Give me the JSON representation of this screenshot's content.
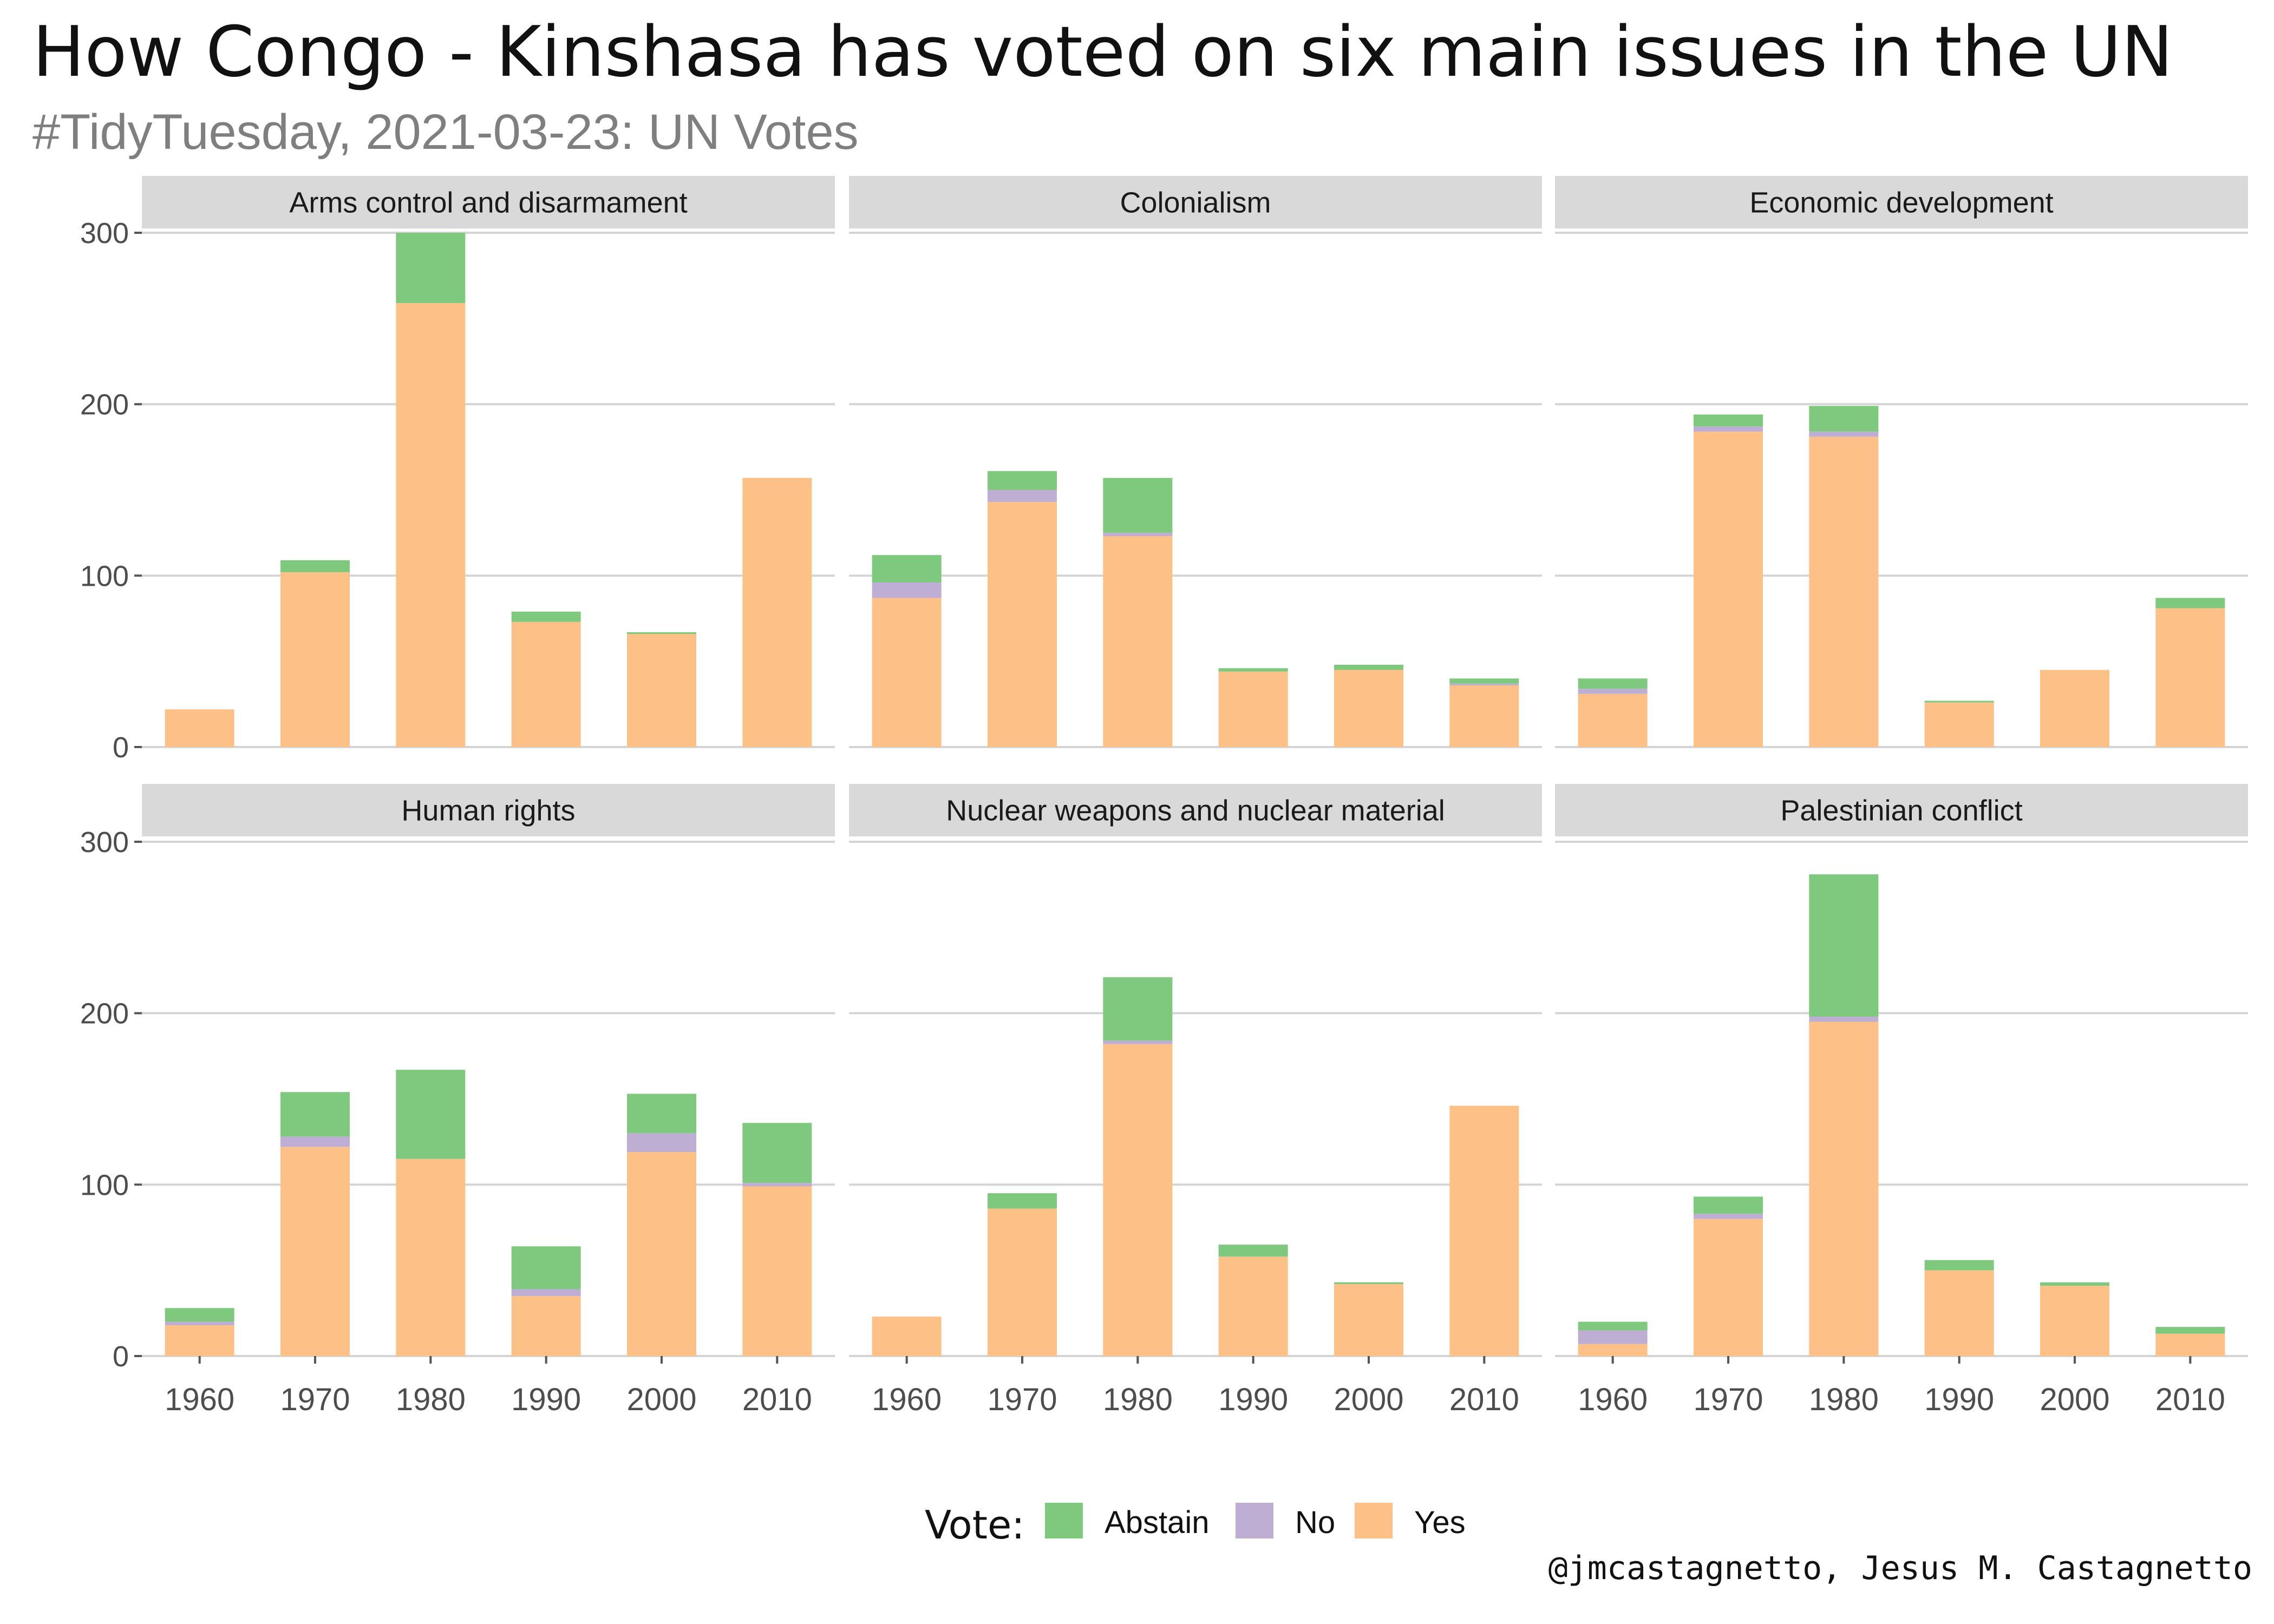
{
  "title": "How Congo - Kinshasa has voted on six main issues in the UN",
  "subtitle": "#TidyTuesday, 2021-03-23: UN Votes",
  "caption": "@jmcastagnetto, Jesus M. Castagnetto",
  "colors": {
    "Abstain": "#7fc97f",
    "No": "#beaed4",
    "Yes": "#fdc086"
  },
  "chart_data": {
    "type": "bar",
    "stacked": true,
    "layout": "facet-grid-2x3",
    "categories": [
      "1960",
      "1970",
      "1980",
      "1990",
      "2000",
      "2010"
    ],
    "ylim": [
      0,
      300
    ],
    "yticks": [
      0,
      100,
      200,
      300
    ],
    "grid": true,
    "legend": {
      "title": "Vote:",
      "position": "bottom",
      "entries": [
        "Abstain",
        "No",
        "Yes"
      ]
    },
    "facets": [
      {
        "name": "Arms control and disarmament",
        "series": [
          {
            "name": "Yes",
            "values": [
              22,
              102,
              259,
              73,
              66,
              157
            ]
          },
          {
            "name": "No",
            "values": [
              0,
              0,
              0,
              0,
              0,
              0
            ]
          },
          {
            "name": "Abstain",
            "values": [
              0,
              7,
              41,
              6,
              1,
              0
            ]
          }
        ]
      },
      {
        "name": "Colonialism",
        "series": [
          {
            "name": "Yes",
            "values": [
              87,
              143,
              123,
              44,
              45,
              36
            ]
          },
          {
            "name": "No",
            "values": [
              9,
              7,
              2,
              0,
              0,
              1
            ]
          },
          {
            "name": "Abstain",
            "values": [
              16,
              11,
              32,
              2,
              3,
              3
            ]
          }
        ]
      },
      {
        "name": "Economic development",
        "series": [
          {
            "name": "Yes",
            "values": [
              31,
              184,
              181,
              26,
              45,
              81
            ]
          },
          {
            "name": "No",
            "values": [
              3,
              3,
              3,
              0,
              0,
              0
            ]
          },
          {
            "name": "Abstain",
            "values": [
              6,
              7,
              15,
              1,
              0,
              6
            ]
          }
        ]
      },
      {
        "name": "Human rights",
        "series": [
          {
            "name": "Yes",
            "values": [
              18,
              122,
              115,
              35,
              119,
              99
            ]
          },
          {
            "name": "No",
            "values": [
              2,
              6,
              0,
              4,
              11,
              2
            ]
          },
          {
            "name": "Abstain",
            "values": [
              8,
              26,
              52,
              25,
              23,
              35
            ]
          }
        ]
      },
      {
        "name": "Nuclear weapons and nuclear material",
        "series": [
          {
            "name": "Yes",
            "values": [
              23,
              86,
              182,
              58,
              42,
              146
            ]
          },
          {
            "name": "No",
            "values": [
              0,
              0,
              2,
              0,
              0,
              0
            ]
          },
          {
            "name": "Abstain",
            "values": [
              0,
              9,
              37,
              7,
              1,
              0
            ]
          }
        ]
      },
      {
        "name": "Palestinian conflict",
        "series": [
          {
            "name": "Yes",
            "values": [
              7,
              80,
              195,
              50,
              41,
              13
            ]
          },
          {
            "name": "No",
            "values": [
              8,
              3,
              3,
              0,
              0,
              0
            ]
          },
          {
            "name": "Abstain",
            "values": [
              5,
              10,
              83,
              6,
              2,
              4
            ]
          }
        ]
      }
    ]
  }
}
